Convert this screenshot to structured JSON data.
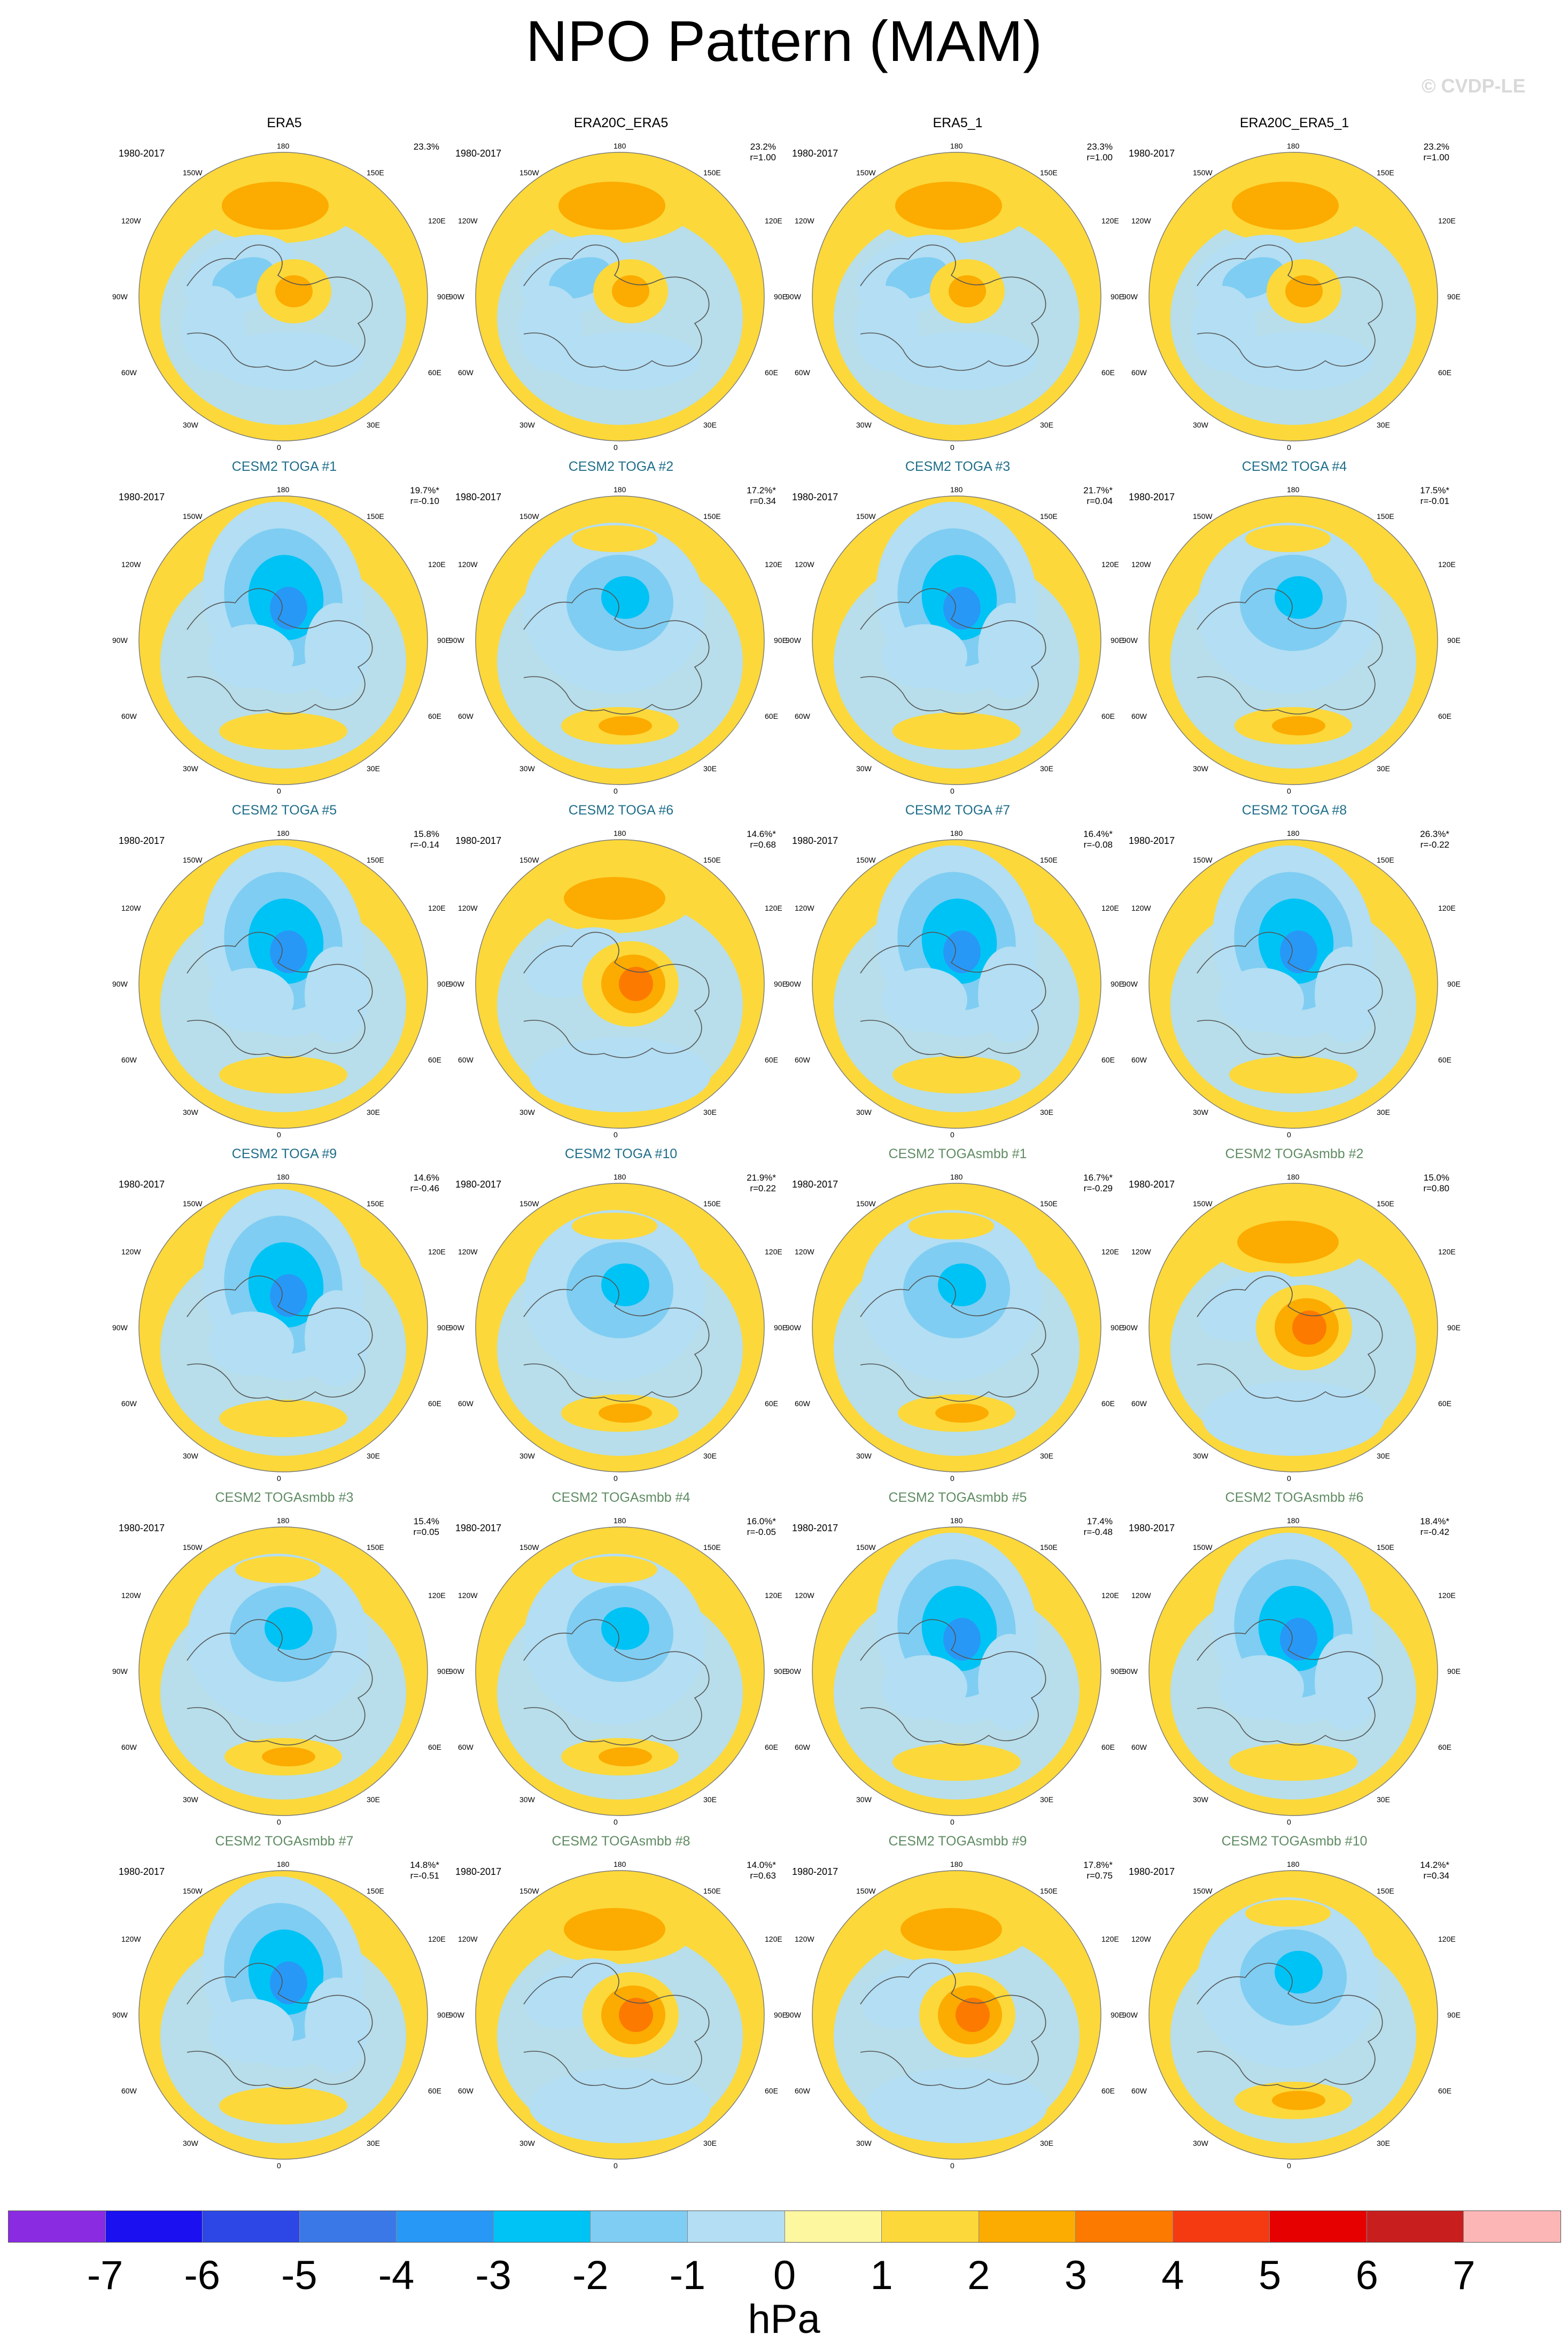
{
  "title": "NPO Pattern (MAM)",
  "credit": "© CVDP-LE",
  "period": "1980-2017",
  "lon_labels": {
    "top": "180",
    "bottom": "0",
    "upper_left": "150W",
    "upper_right": "150E",
    "left_upper": "120W",
    "right_upper": "120E",
    "left": "90W",
    "right": "90E",
    "left_lower": "60W",
    "right_lower": "60E",
    "lower_left": "30W",
    "lower_right": "30E"
  },
  "panels": [
    {
      "title": "ERA5",
      "group": "obs",
      "pct": "23.3%",
      "r": "",
      "pattern": 1
    },
    {
      "title": "ERA20C_ERA5",
      "group": "obs",
      "pct": "23.2%",
      "r": "r=1.00",
      "pattern": 1
    },
    {
      "title": "ERA5_1",
      "group": "obs",
      "pct": "23.3%",
      "r": "r=1.00",
      "pattern": 1
    },
    {
      "title": "ERA20C_ERA5_1",
      "group": "obs",
      "pct": "23.2%",
      "r": "r=1.00",
      "pattern": 1
    },
    {
      "title": "CESM2 TOGA #1",
      "group": "toga",
      "pct": "19.7%*",
      "r": "r=-0.10",
      "pattern": 2
    },
    {
      "title": "CESM2 TOGA #2",
      "group": "toga",
      "pct": "17.2%*",
      "r": "r=0.34",
      "pattern": 3
    },
    {
      "title": "CESM2 TOGA #3",
      "group": "toga",
      "pct": "21.7%*",
      "r": "r=0.04",
      "pattern": 2
    },
    {
      "title": "CESM2 TOGA #4",
      "group": "toga",
      "pct": "17.5%*",
      "r": "r=-0.01",
      "pattern": 3
    },
    {
      "title": "CESM2 TOGA #5",
      "group": "toga",
      "pct": "15.8%",
      "r": "r=-0.14",
      "pattern": 2
    },
    {
      "title": "CESM2 TOGA #6",
      "group": "toga",
      "pct": "14.6%*",
      "r": "r=0.68",
      "pattern": 4
    },
    {
      "title": "CESM2 TOGA #7",
      "group": "toga",
      "pct": "16.4%*",
      "r": "r=-0.08",
      "pattern": 2
    },
    {
      "title": "CESM2 TOGA #8",
      "group": "toga",
      "pct": "26.3%*",
      "r": "r=-0.22",
      "pattern": 2
    },
    {
      "title": "CESM2 TOGA #9",
      "group": "toga",
      "pct": "14.6%",
      "r": "r=-0.46",
      "pattern": 2
    },
    {
      "title": "CESM2 TOGA #10",
      "group": "toga",
      "pct": "21.9%*",
      "r": "r=0.22",
      "pattern": 3
    },
    {
      "title": "CESM2 TOGAsmbb #1",
      "group": "smbb",
      "pct": "16.7%*",
      "r": "r=-0.29",
      "pattern": 3
    },
    {
      "title": "CESM2 TOGAsmbb #2",
      "group": "smbb",
      "pct": "15.0%",
      "r": "r=0.80",
      "pattern": 4
    },
    {
      "title": "CESM2 TOGAsmbb #3",
      "group": "smbb",
      "pct": "15.4%",
      "r": "r=0.05",
      "pattern": 3
    },
    {
      "title": "CESM2 TOGAsmbb #4",
      "group": "smbb",
      "pct": "16.0%*",
      "r": "r=-0.05",
      "pattern": 3
    },
    {
      "title": "CESM2 TOGAsmbb #5",
      "group": "smbb",
      "pct": "17.4%",
      "r": "r=-0.48",
      "pattern": 2
    },
    {
      "title": "CESM2 TOGAsmbb #6",
      "group": "smbb",
      "pct": "18.4%*",
      "r": "r=-0.42",
      "pattern": 2
    },
    {
      "title": "CESM2 TOGAsmbb #7",
      "group": "smbb",
      "pct": "14.8%*",
      "r": "r=-0.51",
      "pattern": 2
    },
    {
      "title": "CESM2 TOGAsmbb #8",
      "group": "smbb",
      "pct": "14.0%*",
      "r": "r=0.63",
      "pattern": 4
    },
    {
      "title": "CESM2 TOGAsmbb #9",
      "group": "smbb",
      "pct": "17.8%*",
      "r": "r=0.75",
      "pattern": 4
    },
    {
      "title": "CESM2 TOGAsmbb #10",
      "group": "smbb",
      "pct": "14.2%*",
      "r": "r=0.34",
      "pattern": 3
    }
  ],
  "colorbar": {
    "unit": "hPa",
    "ticks": [
      "-7",
      "-6",
      "-5",
      "-4",
      "-3",
      "-2",
      "-1",
      "0",
      "1",
      "2",
      "3",
      "4",
      "5",
      "6",
      "7"
    ],
    "colors": [
      "#8a2be2",
      "#1a10f0",
      "#2c47e6",
      "#3a78e8",
      "#2898f6",
      "#00c3f5",
      "#7fcdf2",
      "#b3def3",
      "#fdf7a0",
      "#fcd83a",
      "#fcab00",
      "#fc7a00",
      "#f53a12",
      "#e60000",
      "#c81e1e",
      "#fdb6b6"
    ]
  }
}
